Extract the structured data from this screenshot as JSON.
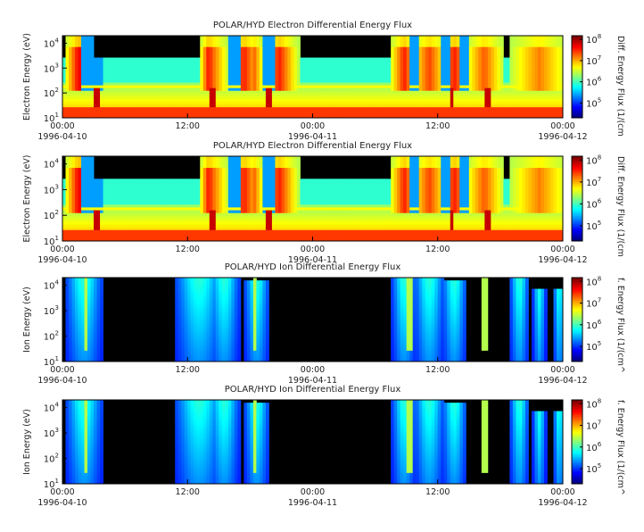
{
  "chart_data": [
    {
      "type": "heatmap",
      "title": "POLAR/HYD  Electron Differential Energy Flux",
      "ylabel": "Electron Energy (eV)",
      "colorbar_label": "Diff. Energy Flux (1/(cm",
      "species": "electron",
      "ylim": [
        10,
        20000
      ],
      "y_scale": "log",
      "yticks": [
        {
          "b": "10",
          "e": "1"
        },
        {
          "b": "10",
          "e": "2"
        },
        {
          "b": "10",
          "e": "3"
        },
        {
          "b": "10",
          "e": "4"
        }
      ],
      "xticks": [
        {
          "t": "00:00",
          "d": "1996-04-10"
        },
        {
          "t": "12:00",
          "d": ""
        },
        {
          "t": "00:00",
          "d": "1996-04-11"
        },
        {
          "t": "12:00",
          "d": ""
        },
        {
          "t": "00:00",
          "d": "1996-04-12"
        }
      ],
      "cbar_ticks": [
        {
          "b": "10",
          "e": "5"
        },
        {
          "b": "10",
          "e": "6"
        },
        {
          "b": "10",
          "e": "7"
        },
        {
          "b": "10",
          "e": "8"
        }
      ],
      "cbar_range": [
        20000,
        150000000
      ]
    },
    {
      "type": "heatmap",
      "title": "POLAR/HYD  Electron Differential Energy Flux",
      "ylabel": "Electron Energy (eV)",
      "colorbar_label": "Diff. Energy Flux (1/(cm",
      "species": "electron",
      "ylim": [
        10,
        20000
      ],
      "y_scale": "log",
      "yticks": [
        {
          "b": "10",
          "e": "1"
        },
        {
          "b": "10",
          "e": "2"
        },
        {
          "b": "10",
          "e": "3"
        },
        {
          "b": "10",
          "e": "4"
        }
      ],
      "xticks": [
        {
          "t": "00:00",
          "d": "1996-04-10"
        },
        {
          "t": "12:00",
          "d": ""
        },
        {
          "t": "00:00",
          "d": "1996-04-11"
        },
        {
          "t": "12:00",
          "d": ""
        },
        {
          "t": "00:00",
          "d": "1996-04-12"
        }
      ],
      "cbar_ticks": [
        {
          "b": "10",
          "e": "5"
        },
        {
          "b": "10",
          "e": "6"
        },
        {
          "b": "10",
          "e": "7"
        },
        {
          "b": "10",
          "e": "8"
        }
      ],
      "cbar_range": [
        20000,
        150000000
      ]
    },
    {
      "type": "heatmap",
      "title": "POLAR/HYD  Ion Differential Energy Flux",
      "ylabel": "Ion Energy (eV)",
      "colorbar_label": "f. Energy Flux (1/(cm^",
      "species": "ion",
      "ylim": [
        10,
        20000
      ],
      "y_scale": "log",
      "yticks": [
        {
          "b": "10",
          "e": "1"
        },
        {
          "b": "10",
          "e": "2"
        },
        {
          "b": "10",
          "e": "3"
        },
        {
          "b": "10",
          "e": "4"
        }
      ],
      "xticks": [
        {
          "t": "00:00",
          "d": "1996-04-10"
        },
        {
          "t": "12:00",
          "d": ""
        },
        {
          "t": "00:00",
          "d": "1996-04-11"
        },
        {
          "t": "12:00",
          "d": ""
        },
        {
          "t": "00:00",
          "d": "1996-04-12"
        }
      ],
      "cbar_ticks": [
        {
          "b": "10",
          "e": "5"
        },
        {
          "b": "10",
          "e": "6"
        },
        {
          "b": "10",
          "e": "7"
        },
        {
          "b": "10",
          "e": "8"
        }
      ],
      "cbar_range": [
        20000,
        150000000
      ]
    },
    {
      "type": "heatmap",
      "title": "POLAR/HYD  Ion Differential Energy Flux",
      "ylabel": "Ion Energy (eV)",
      "colorbar_label": "f. Energy Flux (1/(cm^",
      "species": "ion",
      "ylim": [
        10,
        20000
      ],
      "y_scale": "log",
      "yticks": [
        {
          "b": "10",
          "e": "1"
        },
        {
          "b": "10",
          "e": "2"
        },
        {
          "b": "10",
          "e": "3"
        },
        {
          "b": "10",
          "e": "4"
        }
      ],
      "xticks": [
        {
          "t": "00:00",
          "d": "1996-04-10"
        },
        {
          "t": "12:00",
          "d": ""
        },
        {
          "t": "00:00",
          "d": "1996-04-11"
        },
        {
          "t": "12:00",
          "d": ""
        },
        {
          "t": "00:00",
          "d": "1996-04-12"
        }
      ],
      "cbar_ticks": [
        {
          "b": "10",
          "e": "5"
        },
        {
          "b": "10",
          "e": "6"
        },
        {
          "b": "10",
          "e": "7"
        },
        {
          "b": "10",
          "e": "8"
        }
      ],
      "cbar_range": [
        20000,
        150000000
      ]
    }
  ]
}
